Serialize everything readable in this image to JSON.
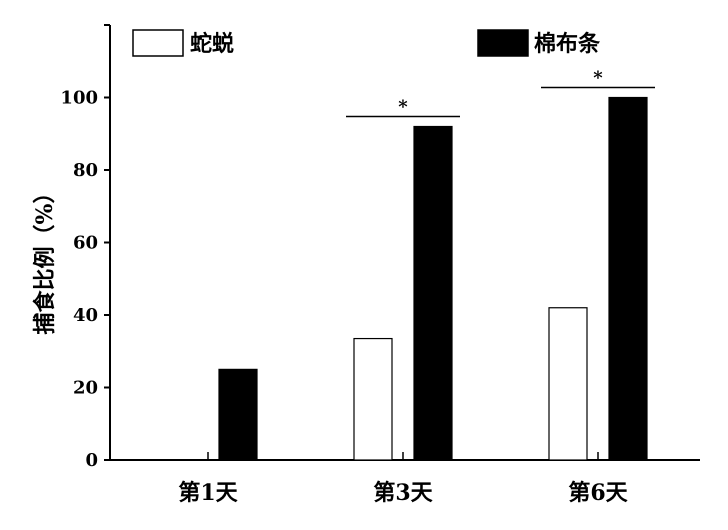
{
  "chart_data": {
    "type": "bar",
    "title": "",
    "xlabel": "",
    "ylabel": "捕食比例（%）",
    "categories": [
      "第1天",
      "第3天",
      "第6天"
    ],
    "series": [
      {
        "name": "蛇蜕",
        "values": [
          0,
          33.5,
          42
        ],
        "color": "#ffffff"
      },
      {
        "name": "棉布条",
        "values": [
          25,
          92,
          100
        ],
        "color": "#000000"
      }
    ],
    "ylim": [
      0,
      120
    ],
    "yticks": [
      0,
      20,
      40,
      60,
      80,
      100
    ],
    "grid": false,
    "legend_position": "top",
    "significance": [
      {
        "category": "第3天",
        "mark": "*"
      },
      {
        "category": "第6天",
        "mark": "*"
      }
    ]
  }
}
